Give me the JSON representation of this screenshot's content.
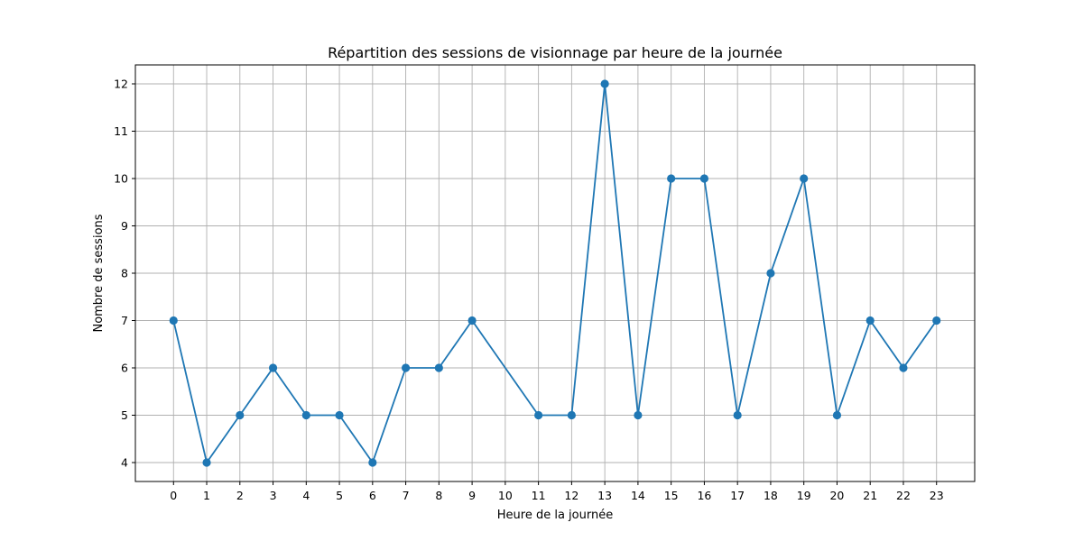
{
  "chart_data": {
    "type": "line",
    "title": "Répartition des sessions de visionnage par heure de la journée",
    "xlabel": "Heure de la journée",
    "ylabel": "Nombre de sessions",
    "x": [
      0,
      1,
      2,
      3,
      4,
      5,
      6,
      7,
      8,
      9,
      11,
      12,
      13,
      14,
      15,
      16,
      17,
      18,
      19,
      20,
      21,
      22,
      23
    ],
    "x_ticks": [
      0,
      1,
      2,
      3,
      4,
      5,
      6,
      7,
      8,
      9,
      10,
      11,
      12,
      13,
      14,
      15,
      16,
      17,
      18,
      19,
      20,
      21,
      22,
      23
    ],
    "series": [
      {
        "values": [
          7,
          4,
          5,
          6,
          5,
          5,
          4,
          6,
          6,
          7,
          5,
          5,
          12,
          5,
          10,
          10,
          5,
          8,
          10,
          5,
          7,
          6,
          7
        ],
        "color": "#1f77b4",
        "marker": "circle"
      }
    ],
    "y_ticks": [
      4,
      5,
      6,
      7,
      8,
      9,
      10,
      11,
      12
    ],
    "xlim": [
      -1.15,
      24.15
    ],
    "ylim": [
      3.6,
      12.4
    ],
    "grid": true
  }
}
